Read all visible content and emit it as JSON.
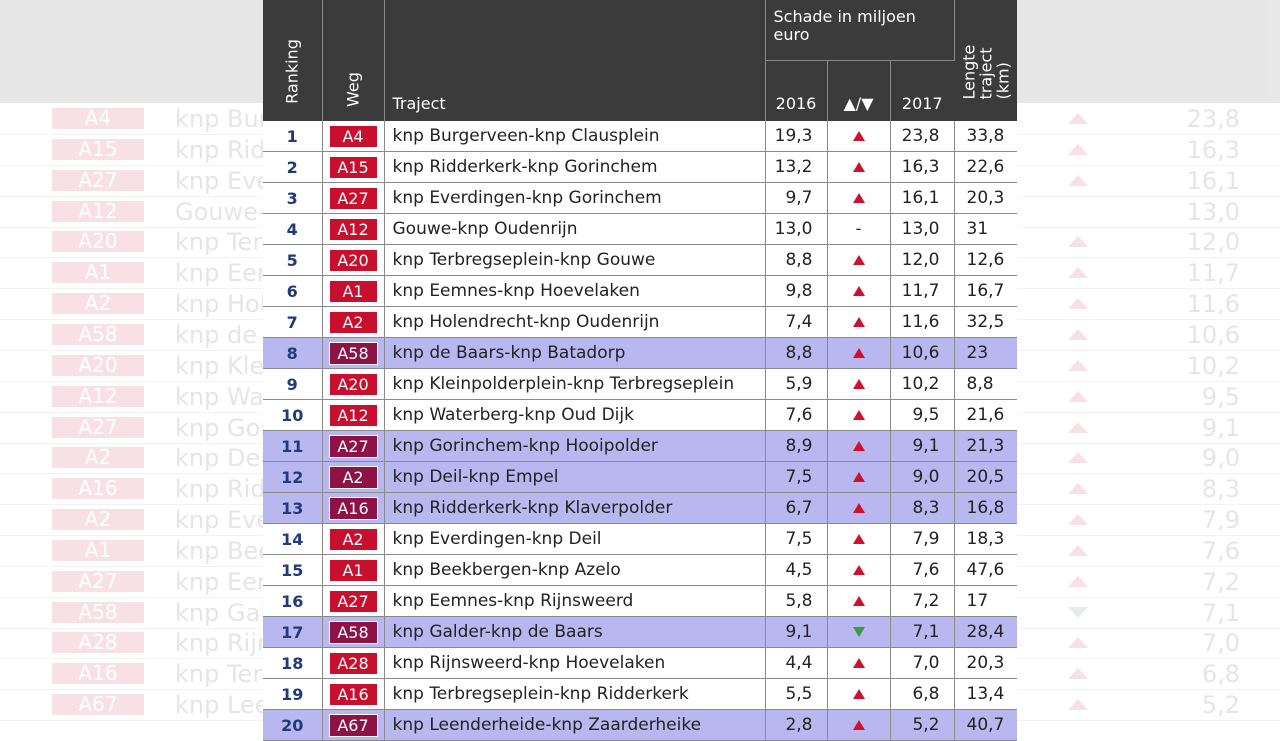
{
  "headers": {
    "ranking": "Ranking",
    "weg": "Weg",
    "traject": "Traject",
    "schade": "Schade in miljoen euro",
    "year_2016": "2016",
    "arrows": "▲/▼",
    "year_2017": "2017",
    "lengte": "Lengte traject (km)"
  },
  "colors": {
    "road_badge": "#c8102e",
    "highlight_row": "#b9b7ef",
    "highlight_badge": "#8e1246",
    "up": "#d0102c",
    "down": "#3a9a4a",
    "header": "#3b3b3b"
  },
  "rows": [
    {
      "rank": "1",
      "road": "A4",
      "traject": "knp Burgerveen-knp Claus­plein",
      "s2016": "19,3",
      "trend": "up",
      "s2017": "23,8",
      "len": "33,8",
      "hl": false
    },
    {
      "rank": "2",
      "road": "A15",
      "traject": "knp Ridderkerk-knp Gorinchem",
      "s2016": "13,2",
      "trend": "up",
      "s2017": "16,3",
      "len": "22,6",
      "hl": false
    },
    {
      "rank": "3",
      "road": "A27",
      "traject": "knp Everdingen-knp Gorinchem",
      "s2016": "9,7",
      "trend": "up",
      "s2017": "16,1",
      "len": "20,3",
      "hl": false
    },
    {
      "rank": "4",
      "road": "A12",
      "traject": "Gouwe-knp Oudenrijn",
      "s2016": "13,0",
      "trend": "none",
      "s2017": "13,0",
      "len": "31",
      "hl": false
    },
    {
      "rank": "5",
      "road": "A20",
      "traject": "knp Terbregseplein-knp Gouwe",
      "s2016": "8,8",
      "trend": "up",
      "s2017": "12,0",
      "len": "12,6",
      "hl": false
    },
    {
      "rank": "6",
      "road": "A1",
      "traject": "knp Eemnes-knp Hoevelaken",
      "s2016": "9,8",
      "trend": "up",
      "s2017": "11,7",
      "len": "16,7",
      "hl": false
    },
    {
      "rank": "7",
      "road": "A2",
      "traject": "knp Holendrecht-knp Oudenrijn",
      "s2016": "7,4",
      "trend": "up",
      "s2017": "11,6",
      "len": "32,5",
      "hl": false
    },
    {
      "rank": "8",
      "road": "A58",
      "traject": "knp de Baars-knp Batadorp",
      "s2016": "8,8",
      "trend": "up",
      "s2017": "10,6",
      "len": "23",
      "hl": true
    },
    {
      "rank": "9",
      "road": "A20",
      "traject": "knp Kleinpolderplein-knp Terbregseplein",
      "s2016": "5,9",
      "trend": "up",
      "s2017": "10,2",
      "len": "8,8",
      "hl": false
    },
    {
      "rank": "10",
      "road": "A12",
      "traject": "knp Waterberg-knp Oud Dijk",
      "s2016": "7,6",
      "trend": "up",
      "s2017": "9,5",
      "len": "21,6",
      "hl": false
    },
    {
      "rank": "11",
      "road": "A27",
      "traject": "knp Gorinchem-knp Hooipolder",
      "s2016": "8,9",
      "trend": "up",
      "s2017": "9,1",
      "len": "21,3",
      "hl": true
    },
    {
      "rank": "12",
      "road": "A2",
      "traject": "knp Deil-knp Empel",
      "s2016": "7,5",
      "trend": "up",
      "s2017": "9,0",
      "len": "20,5",
      "hl": true
    },
    {
      "rank": "13",
      "road": "A16",
      "traject": "knp Ridderkerk-knp Klaverpolder",
      "s2016": "6,7",
      "trend": "up",
      "s2017": "8,3",
      "len": "16,8",
      "hl": true
    },
    {
      "rank": "14",
      "road": "A2",
      "traject": "knp Everdingen-knp Deil",
      "s2016": "7,5",
      "trend": "up",
      "s2017": "7,9",
      "len": "18,3",
      "hl": false
    },
    {
      "rank": "15",
      "road": "A1",
      "traject": "knp Beekbergen-knp Azelo",
      "s2016": "4,5",
      "trend": "up",
      "s2017": "7,6",
      "len": "47,6",
      "hl": false
    },
    {
      "rank": "16",
      "road": "A27",
      "traject": "knp Eemnes-knp Rijnsweerd",
      "s2016": "5,8",
      "trend": "up",
      "s2017": "7,2",
      "len": "17",
      "hl": false
    },
    {
      "rank": "17",
      "road": "A58",
      "traject": "knp Galder-knp de Baars",
      "s2016": "9,1",
      "trend": "down",
      "s2017": "7,1",
      "len": "28,4",
      "hl": true
    },
    {
      "rank": "18",
      "road": "A28",
      "traject": "knp Rijnsweerd-knp Hoevelaken",
      "s2016": "4,4",
      "trend": "up",
      "s2017": "7,0",
      "len": "20,3",
      "hl": false
    },
    {
      "rank": "19",
      "road": "A16",
      "traject": "knp Terbregseplein-knp Ridderkerk",
      "s2016": "5,5",
      "trend": "up",
      "s2017": "6,8",
      "len": "13,4",
      "hl": false
    },
    {
      "rank": "20",
      "road": "A67",
      "traject": "knp Leenderheide-knp Zaarderheike",
      "s2016": "2,8",
      "trend": "up",
      "s2017": "5,2",
      "len": "40,7",
      "hl": true
    }
  ]
}
